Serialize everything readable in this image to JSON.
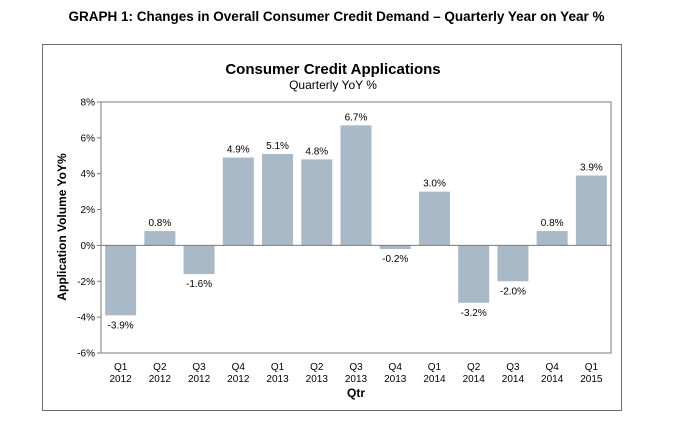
{
  "heading": "GRAPH 1: Changes in Overall Consumer Credit Demand – Quarterly Year on Year %",
  "chart_data": {
    "type": "bar",
    "title": "Consumer Credit Applications",
    "subtitle": "Quarterly YoY %",
    "xlabel": "Qtr",
    "ylabel": "Application Volume YoY%",
    "ylim": [
      -6,
      8
    ],
    "yticks": [
      8,
      6,
      4,
      2,
      0,
      -2,
      -4,
      -6
    ],
    "ytick_labels": [
      "8%",
      "6%",
      "4%",
      "2%",
      "0%",
      "-2%",
      "-4%",
      "-6%"
    ],
    "categories": [
      [
        "Q1",
        "2012"
      ],
      [
        "Q2",
        "2012"
      ],
      [
        "Q3",
        "2012"
      ],
      [
        "Q4",
        "2012"
      ],
      [
        "Q1",
        "2013"
      ],
      [
        "Q2",
        "2013"
      ],
      [
        "Q3",
        "2013"
      ],
      [
        "Q4",
        "2013"
      ],
      [
        "Q1",
        "2014"
      ],
      [
        "Q2",
        "2014"
      ],
      [
        "Q3",
        "2014"
      ],
      [
        "Q4",
        "2014"
      ],
      [
        "Q1",
        "2015"
      ]
    ],
    "values": [
      -3.9,
      0.8,
      -1.6,
      4.9,
      5.1,
      4.8,
      6.7,
      -0.2,
      3.0,
      -3.2,
      -2.0,
      0.8,
      3.9
    ],
    "data_labels": [
      "-3.9%",
      "0.8%",
      "-1.6%",
      "4.9%",
      "5.1%",
      "4.8%",
      "6.7%",
      "-0.2%",
      "3.0%",
      "-3.2%",
      "-2.0%",
      "0.8%",
      "3.9%"
    ],
    "bar_color": "#a9b9c8",
    "grid": false,
    "legend": "none"
  }
}
